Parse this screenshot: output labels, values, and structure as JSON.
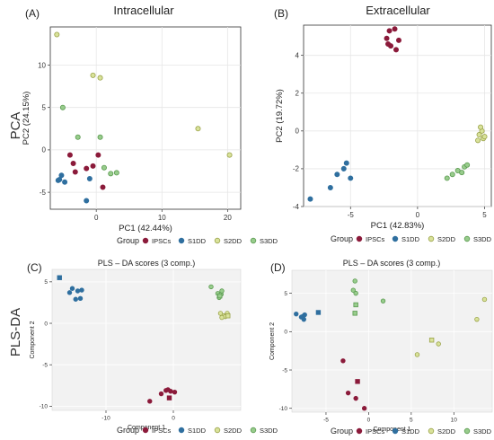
{
  "row_labels": [
    "PCA",
    "PLS-DA"
  ],
  "colors": {
    "IPSCs": "#8b1a3a",
    "S1DD": "#2f6f9f",
    "S2DD": "#d9e29a",
    "S3DD": "#98cc8c",
    "S2DD_stroke": "#9aa34a",
    "S3DD_stroke": "#5a9a50",
    "grid": "#e6e6e6",
    "plsda_bg": "#f2f2f2"
  },
  "chart_data": [
    {
      "type": "scatter",
      "panel": "(A)",
      "title": "Intracellular",
      "xlabel": "PC1 (42.44%)",
      "ylabel": "PC2 (24.15%)",
      "xlim": [
        -7,
        22
      ],
      "ylim": [
        -7,
        14.5
      ],
      "xticks": [
        0,
        10,
        20
      ],
      "yticks": [
        -5,
        0,
        5,
        10
      ],
      "legend_title": "Group",
      "legend": [
        "IPSCs",
        "S1DD",
        "S2DD",
        "S3DD"
      ],
      "series": [
        {
          "name": "IPSCs",
          "marker": "circle",
          "points": [
            [
              -4.0,
              -0.6
            ],
            [
              -3.5,
              -1.6
            ],
            [
              -1.5,
              -2.2
            ],
            [
              -0.5,
              -1.9
            ],
            [
              1.0,
              -4.4
            ],
            [
              0.3,
              -0.6
            ],
            [
              -3.2,
              -2.6
            ]
          ]
        },
        {
          "name": "S1DD",
          "marker": "circle",
          "points": [
            [
              -5.8,
              -3.6
            ],
            [
              -5.3,
              -3.0
            ],
            [
              -4.8,
              -3.8
            ],
            [
              -5.6,
              -3.5
            ],
            [
              -1.0,
              -3.4
            ],
            [
              -1.5,
              -6.0
            ]
          ]
        },
        {
          "name": "S2DD",
          "marker": "circle",
          "points": [
            [
              -6.0,
              13.6
            ],
            [
              -0.5,
              8.8
            ],
            [
              0.6,
              8.5
            ],
            [
              15.5,
              2.5
            ],
            [
              20.3,
              -0.6
            ]
          ]
        },
        {
          "name": "S3DD",
          "marker": "circle",
          "points": [
            [
              -5.1,
              5.0
            ],
            [
              -2.8,
              1.5
            ],
            [
              0.6,
              1.5
            ],
            [
              1.2,
              -2.1
            ],
            [
              2.2,
              -2.8
            ],
            [
              3.1,
              -2.7
            ]
          ]
        }
      ]
    },
    {
      "type": "scatter",
      "panel": "(B)",
      "title": "Extracellular",
      "xlabel": "PC1 (42.83%)",
      "ylabel": "PC2 (19.72%)",
      "xlim": [
        -8.5,
        5.5
      ],
      "ylim": [
        -4,
        5.6
      ],
      "xticks": [
        -5,
        0,
        5
      ],
      "yticks": [
        -4,
        -2,
        0,
        2,
        4
      ],
      "legend_title": "Group",
      "legend": [
        "IPSCs",
        "S1DD",
        "S2DD",
        "S3DD"
      ],
      "series": [
        {
          "name": "IPSCs",
          "marker": "circle",
          "points": [
            [
              -2.1,
              5.3
            ],
            [
              -1.7,
              5.4
            ],
            [
              -2.3,
              4.9
            ],
            [
              -1.4,
              4.8
            ],
            [
              -2.0,
              4.5
            ],
            [
              -1.6,
              4.3
            ],
            [
              -2.2,
              4.6
            ]
          ]
        },
        {
          "name": "S1DD",
          "marker": "circle",
          "points": [
            [
              -8.0,
              -3.6
            ],
            [
              -6.5,
              -3.0
            ],
            [
              -6.0,
              -2.3
            ],
            [
              -5.5,
              -2.0
            ],
            [
              -5.3,
              -1.7
            ],
            [
              -5.0,
              -2.5
            ]
          ]
        },
        {
          "name": "S2DD",
          "marker": "circle",
          "points": [
            [
              4.6,
              -0.2
            ],
            [
              4.8,
              0.0
            ],
            [
              4.9,
              -0.4
            ],
            [
              4.7,
              0.2
            ],
            [
              4.5,
              -0.5
            ],
            [
              5.0,
              -0.3
            ]
          ]
        },
        {
          "name": "S3DD",
          "marker": "circle",
          "points": [
            [
              2.2,
              -2.5
            ],
            [
              2.6,
              -2.3
            ],
            [
              3.0,
              -2.1
            ],
            [
              3.5,
              -1.9
            ],
            [
              3.7,
              -1.8
            ],
            [
              3.3,
              -2.2
            ]
          ]
        }
      ]
    },
    {
      "type": "scatter",
      "panel": "(C)",
      "title": "PLS – DA scores (3 comp.)",
      "xlabel": "Component 1",
      "ylabel": "Component 2",
      "xlim": [
        -18,
        10
      ],
      "ylim": [
        -10.5,
        6.5
      ],
      "xticks": [
        -10,
        0
      ],
      "yticks": [
        -10,
        -5,
        0,
        5
      ],
      "legend_title": "Group",
      "legend": [
        "IPSCs",
        "S1DD",
        "S2DD",
        "S3DD"
      ],
      "series": [
        {
          "name": "IPSCs",
          "marker": "circle",
          "points": [
            [
              -3.5,
              -9.4
            ],
            [
              -1.8,
              -8.5
            ],
            [
              -1.1,
              -8.1
            ],
            [
              -0.4,
              -8.2
            ],
            [
              0.2,
              -8.3
            ],
            [
              -0.8,
              -8.0
            ]
          ]
        },
        {
          "name": "IPSCs",
          "marker": "square",
          "points": [
            [
              -0.6,
              -9.0
            ]
          ]
        },
        {
          "name": "S1DD",
          "marker": "circle",
          "points": [
            [
              -15.4,
              3.7
            ],
            [
              -15.0,
              4.2
            ],
            [
              -14.2,
              3.9
            ],
            [
              -13.8,
              3.0
            ],
            [
              -14.5,
              2.9
            ],
            [
              -13.6,
              4.0
            ]
          ]
        },
        {
          "name": "S1DD",
          "marker": "square",
          "points": [
            [
              -16.9,
              5.5
            ]
          ]
        },
        {
          "name": "S2DD",
          "marker": "circle",
          "points": [
            [
              7.0,
              1.2
            ],
            [
              7.5,
              0.9
            ],
            [
              8.0,
              1.2
            ],
            [
              7.7,
              0.8
            ],
            [
              7.2,
              0.7
            ]
          ]
        },
        {
          "name": "S2DD",
          "marker": "square",
          "points": [
            [
              8.1,
              0.9
            ]
          ]
        },
        {
          "name": "S3DD",
          "marker": "circle",
          "points": [
            [
              5.6,
              4.4
            ],
            [
              6.6,
              3.6
            ],
            [
              7.1,
              3.5
            ],
            [
              6.8,
              3.1
            ],
            [
              7.2,
              3.9
            ]
          ]
        },
        {
          "name": "S3DD",
          "marker": "square",
          "points": [
            [
              6.9,
              3.3
            ]
          ]
        }
      ]
    },
    {
      "type": "scatter",
      "panel": "(D)",
      "title": "PLS – DA scores (3 comp.)",
      "xlabel": "Component 1",
      "ylabel": "Component 2",
      "xlim": [
        -9,
        14.5
      ],
      "ylim": [
        -10.5,
        8
      ],
      "xticks": [
        -5,
        0,
        5,
        10
      ],
      "yticks": [
        -10,
        -5,
        0,
        5
      ],
      "legend_title": "Group",
      "legend": [
        "IPSCs",
        "S1DD",
        "S2DD",
        "S3DD"
      ],
      "series": [
        {
          "name": "IPSCs",
          "marker": "circle",
          "points": [
            [
              -3.0,
              -3.8
            ],
            [
              -2.4,
              -8.0
            ],
            [
              -1.5,
              -8.7
            ],
            [
              -0.5,
              -10.0
            ]
          ]
        },
        {
          "name": "IPSCs",
          "marker": "square",
          "points": [
            [
              -1.3,
              -6.5
            ]
          ]
        },
        {
          "name": "S1DD",
          "marker": "circle",
          "points": [
            [
              -8.5,
              2.3
            ],
            [
              -7.7,
              2.0
            ],
            [
              -7.5,
              2.2
            ],
            [
              -7.6,
              1.6
            ],
            [
              -7.9,
              1.9
            ]
          ]
        },
        {
          "name": "S1DD",
          "marker": "square",
          "points": [
            [
              -5.9,
              2.5
            ]
          ]
        },
        {
          "name": "S2DD",
          "marker": "circle",
          "points": [
            [
              5.7,
              -3.0
            ],
            [
              8.2,
              -1.6
            ],
            [
              12.7,
              1.6
            ],
            [
              13.6,
              4.2
            ]
          ]
        },
        {
          "name": "S2DD",
          "marker": "square",
          "points": [
            [
              7.4,
              -1.1
            ]
          ]
        },
        {
          "name": "S3DD",
          "marker": "circle",
          "points": [
            [
              -1.6,
              6.6
            ],
            [
              -1.8,
              5.4
            ],
            [
              -1.5,
              5.0
            ],
            [
              1.7,
              4.0
            ]
          ]
        },
        {
          "name": "S3DD",
          "marker": "square",
          "points": [
            [
              -1.5,
              3.5
            ],
            [
              -1.6,
              2.4
            ]
          ]
        }
      ]
    }
  ]
}
